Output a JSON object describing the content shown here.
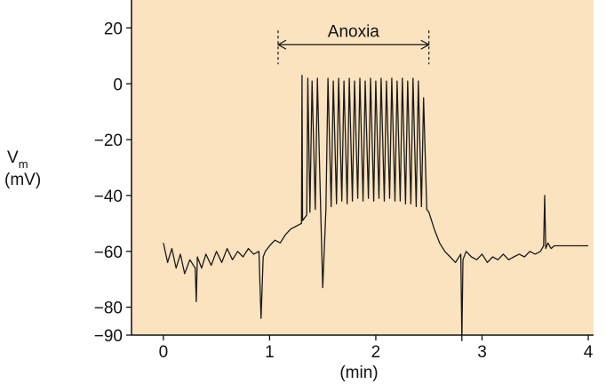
{
  "chart_data": {
    "type": "line",
    "title": "",
    "xlabel": "(min)",
    "ylabel": "(mV)",
    "ylabel_symbol": "V",
    "ylabel_subscript": "m",
    "xlim": [
      -0.3,
      4.05
    ],
    "ylim": [
      -90,
      30
    ],
    "x_ticks": [
      0,
      1,
      2,
      3,
      4
    ],
    "x_tick_labels": [
      "0",
      "1",
      "2",
      "3",
      "4"
    ],
    "y_ticks": [
      20,
      0,
      -20,
      -40,
      -60,
      -80,
      -90
    ],
    "y_tick_labels": [
      "20",
      "0",
      "−20",
      "−40",
      "−60",
      "−80",
      "−90"
    ],
    "grid": false,
    "plot_background": "#fbe3c0",
    "trace_color": "#1a1a1a",
    "annotation": {
      "label": "Anoxia",
      "x_start": 1.08,
      "x_end": 2.5,
      "y": 14
    },
    "series": [
      {
        "x": [
          0.0,
          0.04,
          0.08,
          0.12,
          0.16,
          0.2,
          0.25,
          0.3,
          0.31,
          0.32,
          0.36,
          0.4,
          0.45,
          0.5,
          0.55,
          0.6,
          0.65,
          0.7,
          0.75,
          0.8,
          0.85,
          0.9,
          0.92,
          0.94,
          0.96,
          1.0,
          1.05,
          1.1,
          1.15,
          1.2,
          1.25,
          1.3,
          1.305,
          1.31,
          1.35,
          1.36,
          1.38,
          1.4,
          1.43,
          1.45,
          1.48,
          1.5,
          1.53,
          1.55,
          1.58,
          1.6,
          1.63,
          1.65,
          1.68,
          1.7,
          1.73,
          1.75,
          1.78,
          1.8,
          1.83,
          1.85,
          1.88,
          1.9,
          1.93,
          1.95,
          1.98,
          2.0,
          2.03,
          2.05,
          2.08,
          2.1,
          2.13,
          2.15,
          2.18,
          2.2,
          2.23,
          2.25,
          2.28,
          2.3,
          2.33,
          2.35,
          2.38,
          2.4,
          2.43,
          2.45,
          2.48,
          2.5,
          2.55,
          2.6,
          2.65,
          2.7,
          2.75,
          2.8,
          2.81,
          2.82,
          2.85,
          2.9,
          2.95,
          3.0,
          3.05,
          3.1,
          3.15,
          3.2,
          3.25,
          3.3,
          3.35,
          3.4,
          3.45,
          3.5,
          3.55,
          3.58,
          3.59,
          3.6,
          3.62,
          3.65,
          3.68,
          4.0
        ],
        "y": [
          -57,
          -64,
          -59,
          -66,
          -61,
          -68,
          -63,
          -66,
          -78,
          -62,
          -66,
          -61,
          -65,
          -60,
          -64,
          -59,
          -63,
          -60,
          -62,
          -59,
          -61,
          -60,
          -84,
          -62,
          -60,
          -58,
          -56,
          -57,
          -54,
          -52,
          -51,
          -50,
          3,
          -49,
          -47,
          2,
          -46,
          1,
          -45,
          2,
          -44,
          -73,
          -45,
          2,
          -44,
          1,
          -43,
          2,
          -42,
          1,
          -43,
          2,
          -42,
          1,
          -41,
          2,
          -42,
          1,
          -41,
          2,
          -42,
          1,
          -41,
          2,
          -42,
          1,
          -41,
          2,
          -42,
          1,
          -42,
          2,
          -43,
          1,
          -43,
          2,
          -44,
          1,
          -44,
          -5,
          -45,
          -46,
          -52,
          -57,
          -60,
          -62,
          -64,
          -61,
          -92,
          -63,
          -60,
          -62,
          -63,
          -61,
          -64,
          -62,
          -63,
          -61,
          -63,
          -62,
          -61,
          -62,
          -60,
          -61,
          -60,
          -58,
          -40,
          -59,
          -57,
          -59,
          -58,
          -58
        ]
      }
    ]
  }
}
